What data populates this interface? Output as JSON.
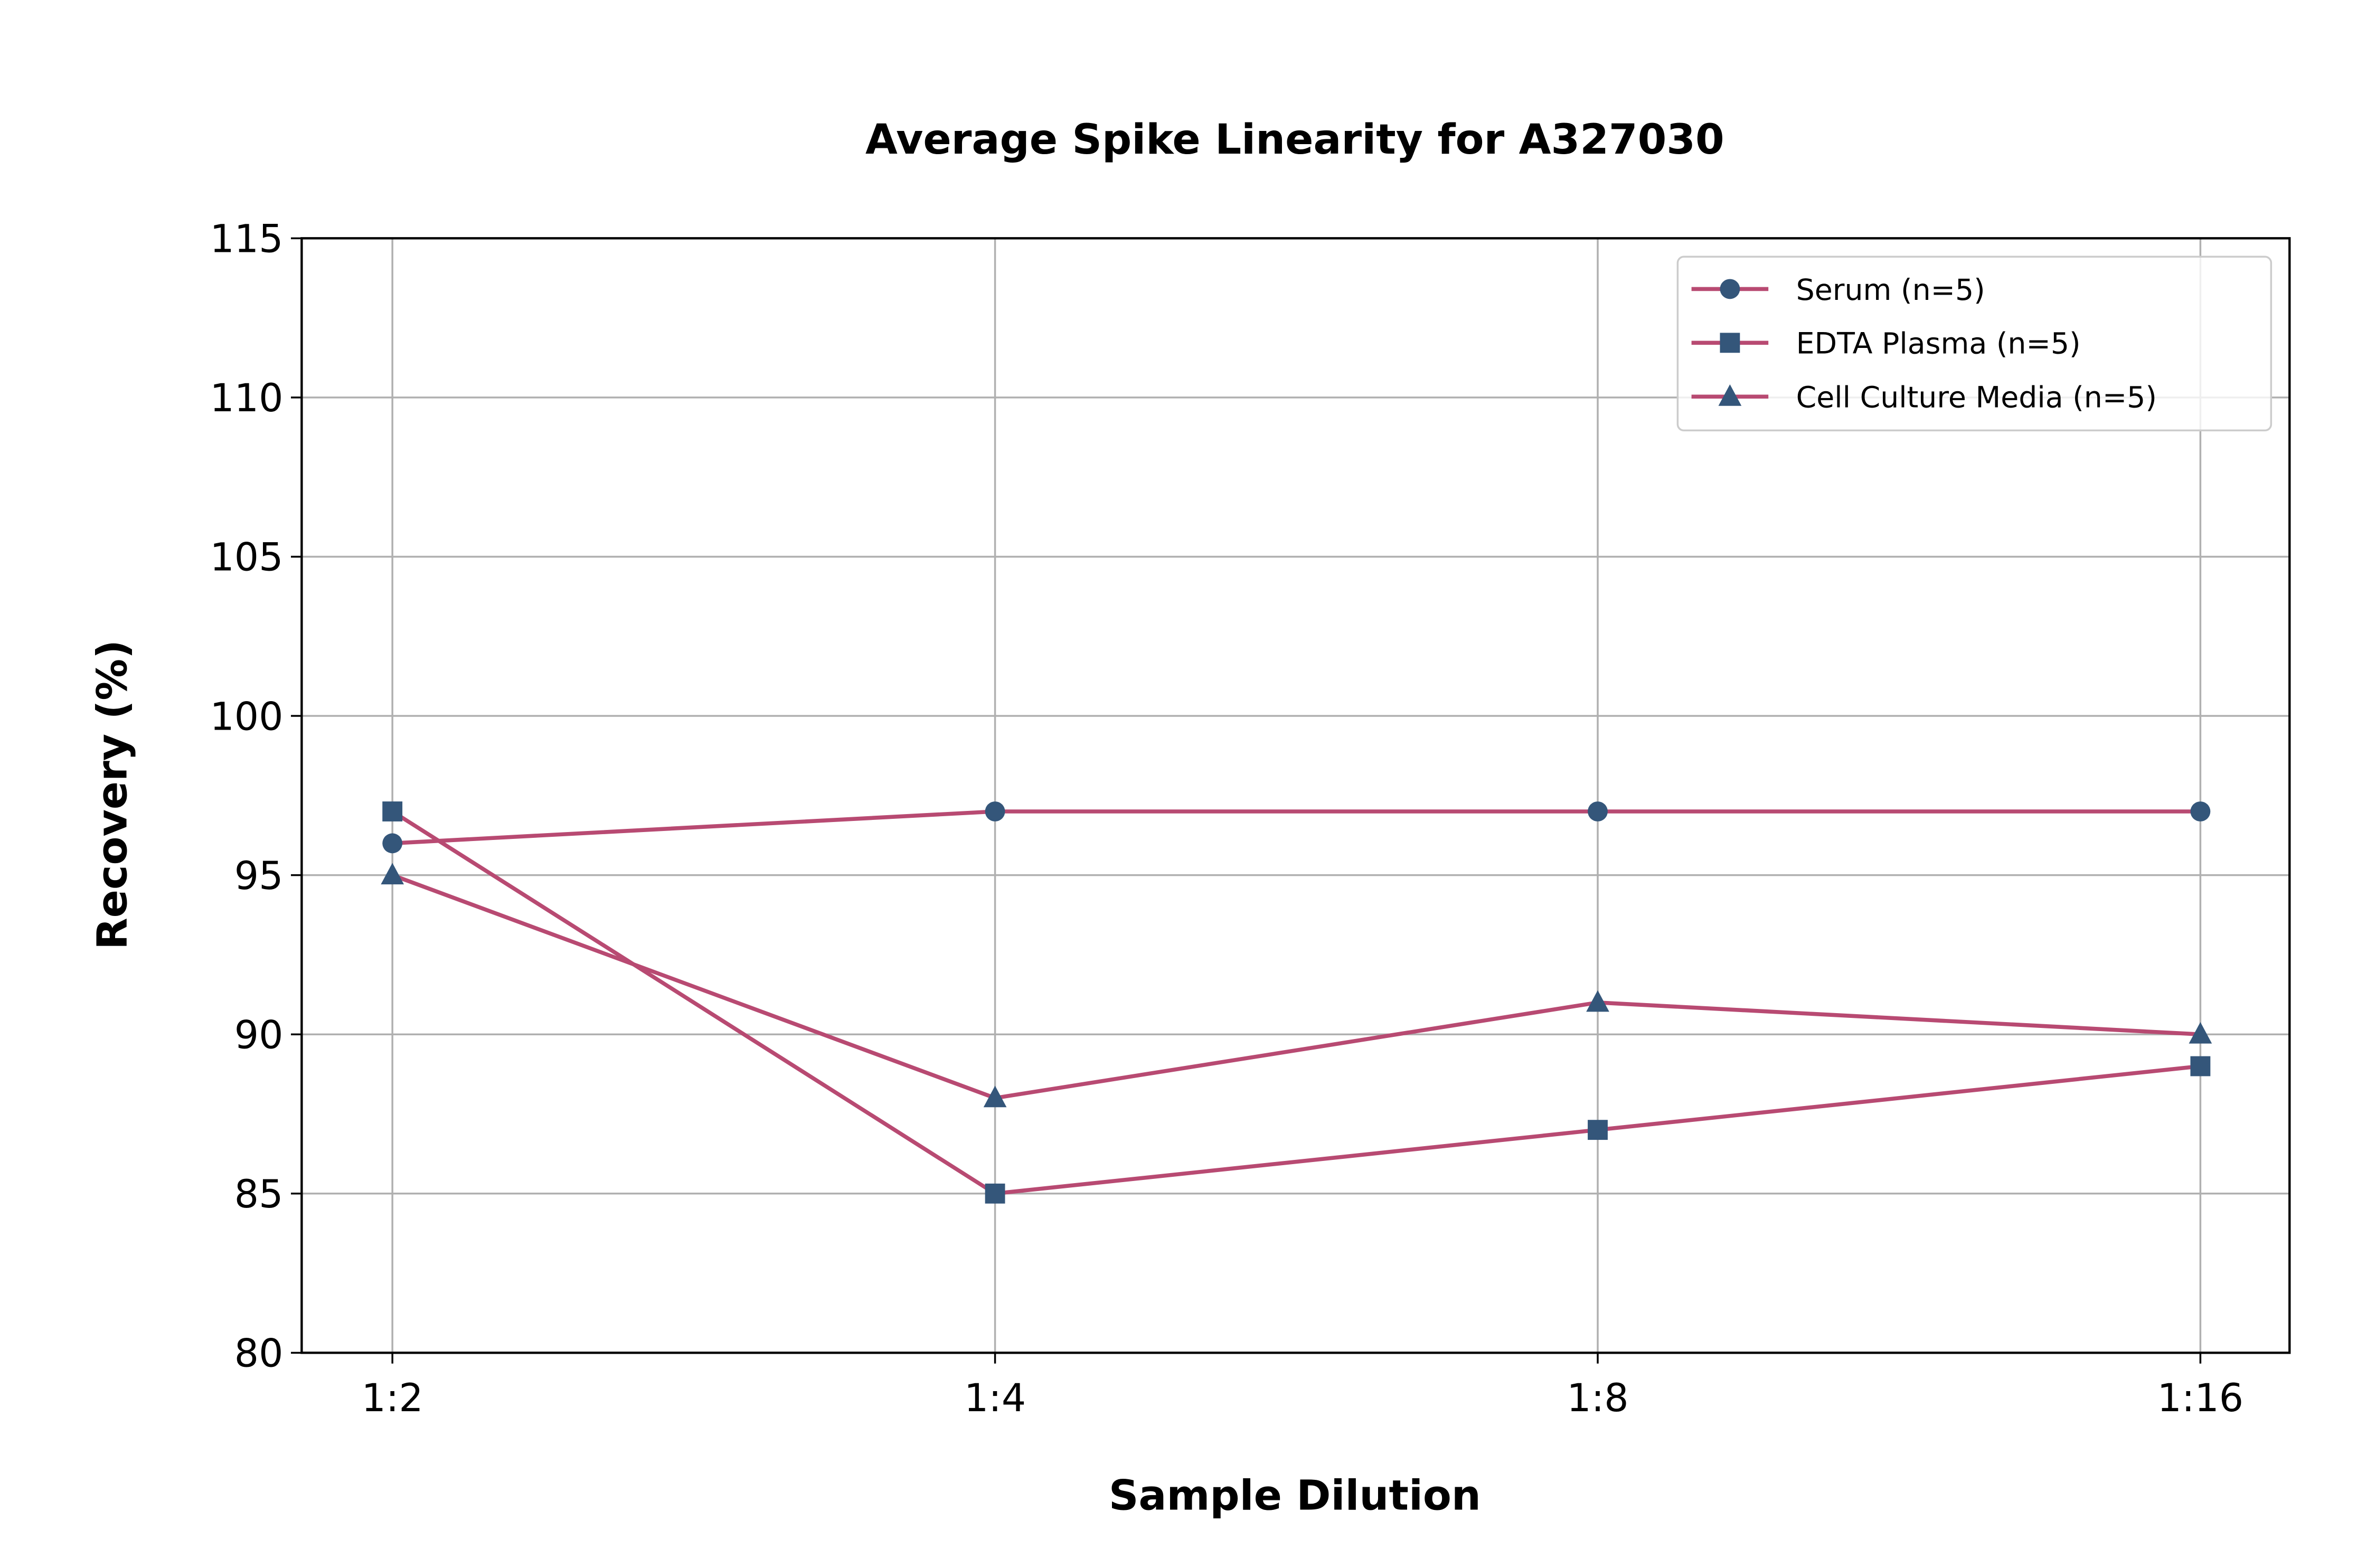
{
  "chart_data": {
    "type": "line",
    "title": "Average Spike Linearity for A327030",
    "xlabel": "Sample Dilution",
    "ylabel": "Recovery (%)",
    "categories": [
      "1:2",
      "1:4",
      "1:8",
      "1:16"
    ],
    "ylim": [
      80,
      115
    ],
    "yticks": [
      "80",
      "85",
      "90",
      "95",
      "100",
      "105",
      "110",
      "115"
    ],
    "grid": true,
    "legend_position": "top-right",
    "line_color": "#b84a72",
    "marker_color": "#34567a",
    "series": [
      {
        "name": "Serum (n=5)",
        "marker": "circle",
        "values": [
          96,
          97,
          97,
          97
        ]
      },
      {
        "name": "EDTA Plasma (n=5)",
        "marker": "square",
        "values": [
          97,
          85,
          87,
          89
        ]
      },
      {
        "name": "Cell Culture Media (n=5)",
        "marker": "triangle",
        "values": [
          95,
          88,
          91,
          90
        ]
      }
    ]
  }
}
